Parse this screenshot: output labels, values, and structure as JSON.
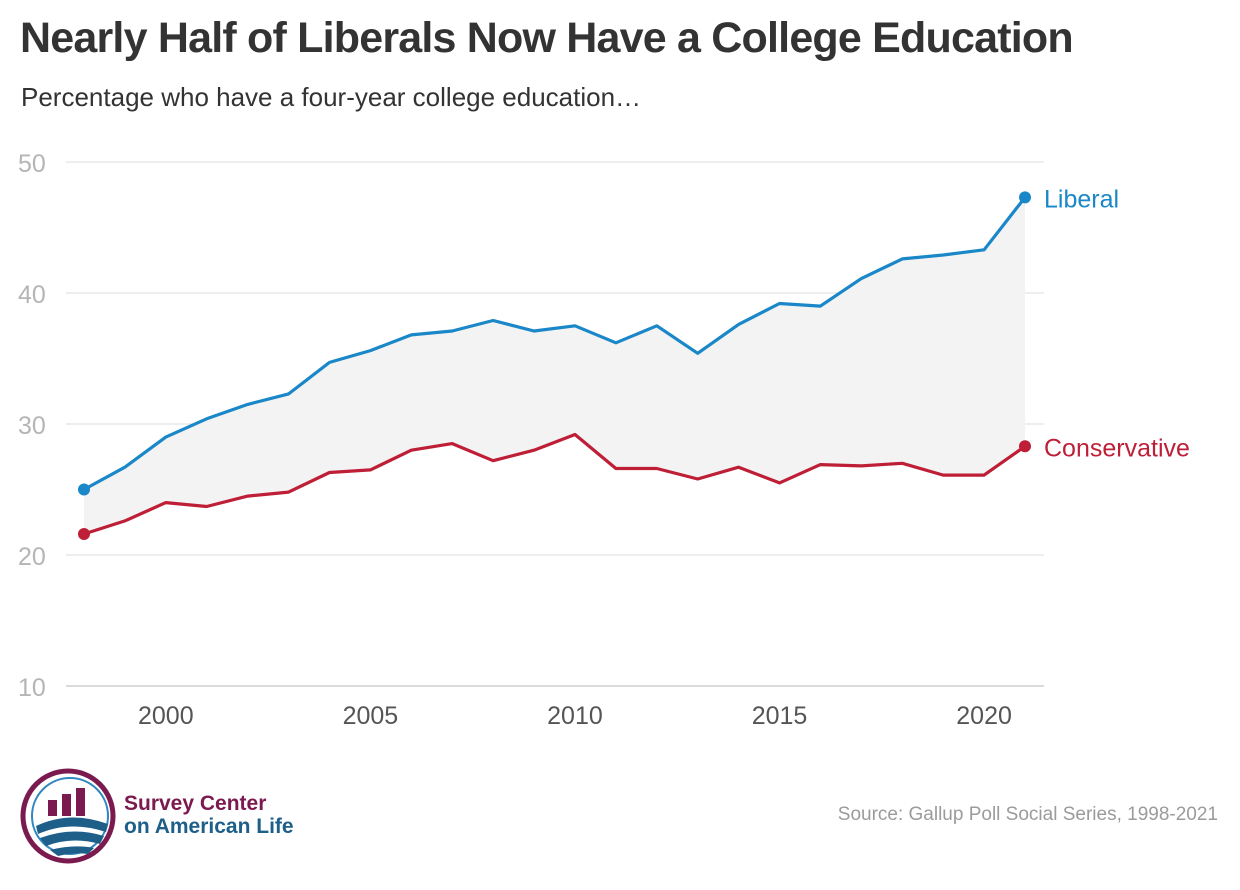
{
  "title": "Nearly Half of Liberals Now Have a College Education",
  "subtitle": "Percentage who have a four-year college education…",
  "source": "Source: Gallup Poll Social Series, 1998-2021",
  "logo": {
    "line1": "Survey Center",
    "line2": "on American Life",
    "colors": {
      "maroon": "#7a1a4e",
      "blue": "#1e5f8a",
      "light_blue": "#2f86c0"
    }
  },
  "chart_data": {
    "type": "line",
    "x": [
      1998,
      1999,
      2000,
      2001,
      2002,
      2003,
      2004,
      2005,
      2006,
      2007,
      2008,
      2009,
      2010,
      2011,
      2012,
      2013,
      2014,
      2015,
      2016,
      2017,
      2018,
      2019,
      2020,
      2021
    ],
    "series": [
      {
        "name": "Liberal",
        "color": "#1a87c8",
        "values": [
          25.0,
          26.7,
          29.0,
          30.4,
          31.5,
          32.3,
          34.7,
          35.6,
          36.8,
          37.1,
          37.9,
          37.1,
          37.5,
          36.2,
          37.5,
          35.4,
          37.6,
          39.2,
          39.0,
          41.1,
          42.6,
          42.9,
          43.3,
          47.3
        ]
      },
      {
        "name": "Conservative",
        "color": "#be1e36",
        "values": [
          21.6,
          22.6,
          24.0,
          23.7,
          24.5,
          24.8,
          26.3,
          26.5,
          28.0,
          28.5,
          27.2,
          28.0,
          29.2,
          26.6,
          26.6,
          25.8,
          26.7,
          25.5,
          26.9,
          26.8,
          27.0,
          26.1,
          26.1,
          28.3
        ]
      }
    ],
    "x_ticks": [
      "2000",
      "2005",
      "2010",
      "2015",
      "2020"
    ],
    "y_ticks": [
      "10",
      "20",
      "30",
      "40",
      "50"
    ],
    "xlim": [
      1998,
      2021
    ],
    "ylim": [
      10,
      50
    ],
    "grid": true,
    "gap_fill_color": "#f3f3f3",
    "axis_text_color": "#b5b5b5",
    "gridline_color": "#e3e3e3"
  }
}
